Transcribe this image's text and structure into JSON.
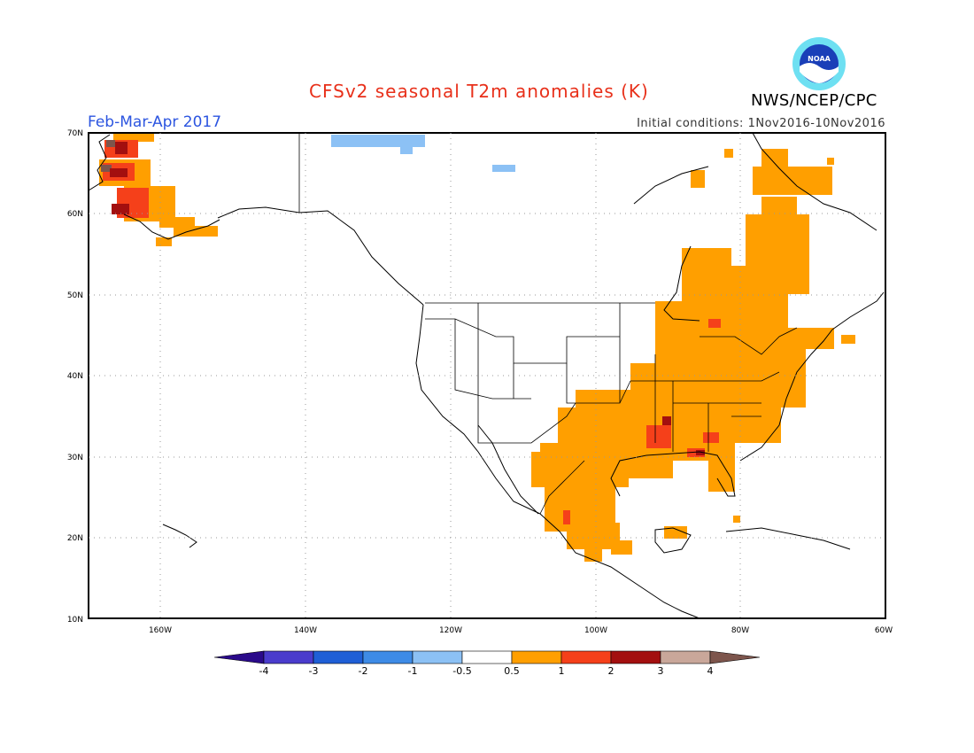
{
  "header": {
    "title": "CFSv2 seasonal T2m anomalies (K)",
    "season": "Feb-Mar-Apr 2017",
    "initial_conditions": "Initial conditions: 1Nov2016-10Nov2016",
    "agency": "NWS/NCEP/CPC",
    "logo_text": "NOAA"
  },
  "map": {
    "lat_labels": [
      "70N",
      "60N",
      "50N",
      "40N",
      "30N",
      "20N",
      "10N"
    ],
    "lon_labels": [
      "160W",
      "140W",
      "120W",
      "100W",
      "80W",
      "60W"
    ]
  },
  "colorbar": {
    "labels": [
      "-4",
      "-3",
      "-2",
      "-1",
      "-0.5",
      "0.5",
      "1",
      "2",
      "3",
      "4"
    ],
    "colors": [
      "#2a0a8a",
      "#4a3ccc",
      "#1f5fd6",
      "#3e8be6",
      "#8cc1f5",
      "#ffffff",
      "#ff9f00",
      "#f5401a",
      "#a30f0f",
      "#c9a79a",
      "#7d554c"
    ]
  }
}
